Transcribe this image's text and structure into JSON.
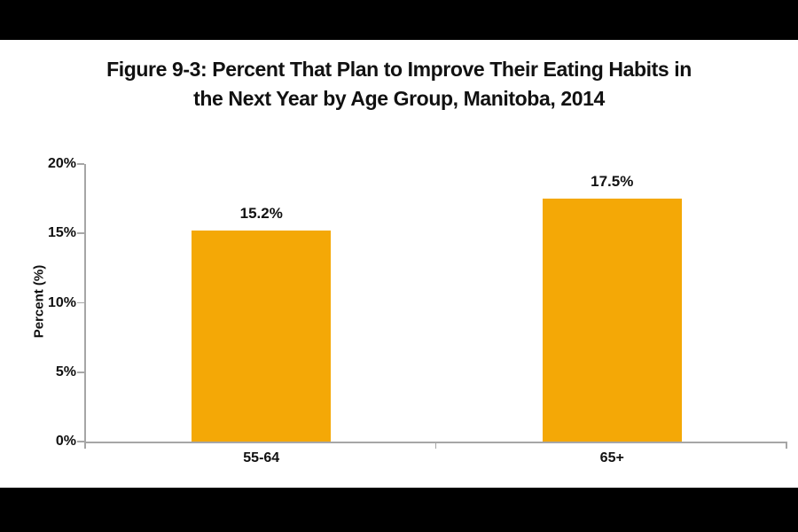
{
  "figure": {
    "title_lines": [
      "Figure 9-3: Percent That Plan to Improve Their Eating Habits in",
      "the Next Year by Age Group, Manitoba, 2014"
    ]
  },
  "chart_data": {
    "type": "bar",
    "title": "Figure 9-3: Percent That Plan to Improve Their Eating Habits in the Next Year by Age Group, Manitoba, 2014",
    "categories": [
      "55-64",
      "65+"
    ],
    "values": [
      15.2,
      17.5
    ],
    "data_labels": [
      "15.2%",
      "17.5%"
    ],
    "xlabel": "",
    "ylabel": "Percent (%)",
    "ylim": [
      0,
      20
    ],
    "yticks": [
      0,
      5,
      10,
      15,
      20
    ],
    "ytick_labels": [
      "0%",
      "5%",
      "10%",
      "15%",
      "20%"
    ],
    "grid": false,
    "legend": false,
    "colors": {
      "bar": "#F4A806",
      "axis": "#A6A6A6",
      "text": "#111111",
      "background": "#FFFFFF",
      "letterbox": "#000000"
    }
  }
}
